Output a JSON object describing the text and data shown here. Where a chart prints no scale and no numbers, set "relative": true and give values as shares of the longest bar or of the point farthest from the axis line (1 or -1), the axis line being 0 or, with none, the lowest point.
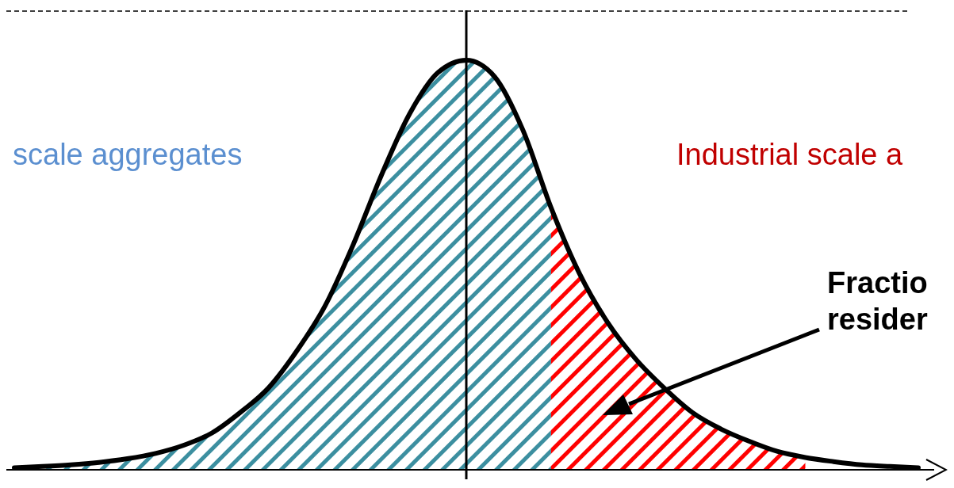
{
  "chart_data": {
    "type": "area",
    "relative": true,
    "categories": [
      null,
      null,
      null,
      null,
      null,
      null,
      null,
      null,
      null,
      null,
      null,
      null,
      null,
      null,
      null,
      null,
      null,
      null,
      null,
      null,
      null,
      null,
      null,
      null,
      null,
      null,
      null,
      null,
      null,
      null,
      null,
      null,
      null
    ],
    "series": [
      {
        "color": "#3c8fa0",
        "values": [
          0.005,
          0.008,
          0.012,
          0.018,
          0.027,
          0.04,
          0.06,
          0.09,
          0.14,
          0.2,
          0.29,
          0.4,
          0.55,
          0.72,
          0.87,
          0.97,
          1,
          0.96,
          0.83,
          0.64,
          null,
          null,
          null,
          null,
          null,
          null,
          null,
          null,
          null,
          null,
          null,
          null,
          null
        ]
      },
      {
        "color": "#ff0000",
        "values": [
          null,
          null,
          null,
          null,
          null,
          null,
          null,
          null,
          null,
          null,
          null,
          null,
          null,
          null,
          null,
          null,
          null,
          null,
          null,
          0.64,
          0.48,
          0.36,
          0.27,
          0.2,
          0.14,
          0.1,
          0.07,
          0.045,
          0.03,
          null,
          null,
          null,
          null
        ]
      },
      {
        "type": "line",
        "color": "#000000",
        "values": [
          0.005,
          0.008,
          0.012,
          0.018,
          0.027,
          0.04,
          0.06,
          0.09,
          0.14,
          0.2,
          0.29,
          0.4,
          0.55,
          0.72,
          0.87,
          0.97,
          1,
          0.96,
          0.83,
          0.64,
          0.48,
          0.36,
          0.27,
          0.2,
          0.14,
          0.1,
          0.07,
          0.045,
          0.03,
          0.02,
          0.012,
          0.008,
          0.005
        ]
      }
    ],
    "ref_lines": [
      {
        "axis": "y",
        "value": 1.12,
        "line_style": "dashed",
        "color": "#000000"
      }
    ],
    "annotations": [
      "scale aggregates",
      "Industrial scale a",
      "Fractio\nresider"
    ],
    "line_style": "solid"
  }
}
